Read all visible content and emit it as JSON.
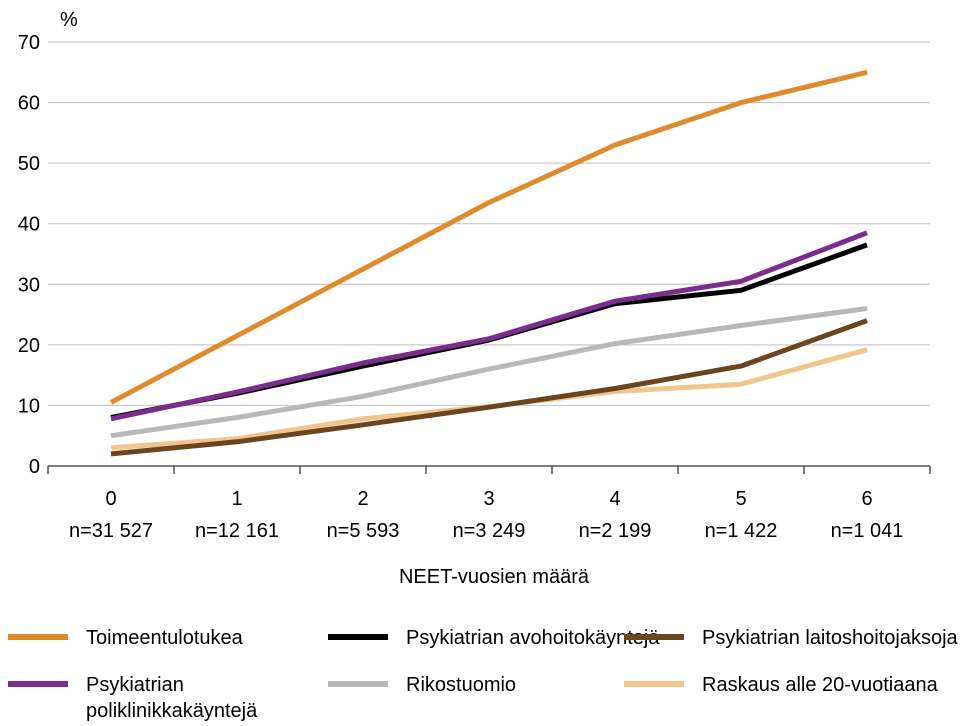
{
  "chart_data": {
    "type": "line",
    "y_unit": "%",
    "xlabel": "NEET-vuosien määrä",
    "ylabel": "%",
    "ylim": [
      0,
      70
    ],
    "yticks": [
      0,
      10,
      20,
      30,
      40,
      50,
      60,
      70
    ],
    "grid": true,
    "categories": [
      {
        "value": "0",
        "n": "n=31 527"
      },
      {
        "value": "1",
        "n": "n=12 161"
      },
      {
        "value": "2",
        "n": "n=5 593"
      },
      {
        "value": "3",
        "n": "n=3 249"
      },
      {
        "value": "4",
        "n": "n=2 199"
      },
      {
        "value": "5",
        "n": "n=1 422"
      },
      {
        "value": "6",
        "n": "n=1 041"
      }
    ],
    "legend_position": "bottom",
    "series": [
      {
        "name": "Toimeentulotukea",
        "color": "#E08A2E",
        "values": [
          10.5,
          21.5,
          32.5,
          43.5,
          53.0,
          60.0,
          65.0
        ]
      },
      {
        "name": "Psykiatrian avohoitokäyntejä",
        "color": "#000000",
        "values": [
          8.0,
          12.0,
          16.5,
          20.8,
          26.8,
          29.0,
          36.5
        ]
      },
      {
        "name": "Psykiatrian laitoshoitojaksoja",
        "color": "#6B4420",
        "values": [
          2.0,
          4.0,
          6.8,
          9.7,
          12.8,
          16.5,
          24.0
        ]
      },
      {
        "name": "Psykiatrian poliklinikkakäyntejä",
        "color": "#7B2D8E",
        "values": [
          7.8,
          12.2,
          17.0,
          21.0,
          27.2,
          30.5,
          38.5
        ]
      },
      {
        "name": "Rikostuomio",
        "color": "#B8B8B8",
        "values": [
          5.0,
          8.0,
          11.5,
          16.0,
          20.2,
          23.2,
          26.0
        ]
      },
      {
        "name": "Raskaus alle 20-vuotiaana",
        "color": "#F2C58C",
        "values": [
          3.0,
          4.5,
          7.8,
          9.8,
          12.3,
          13.5,
          19.2
        ]
      }
    ]
  }
}
